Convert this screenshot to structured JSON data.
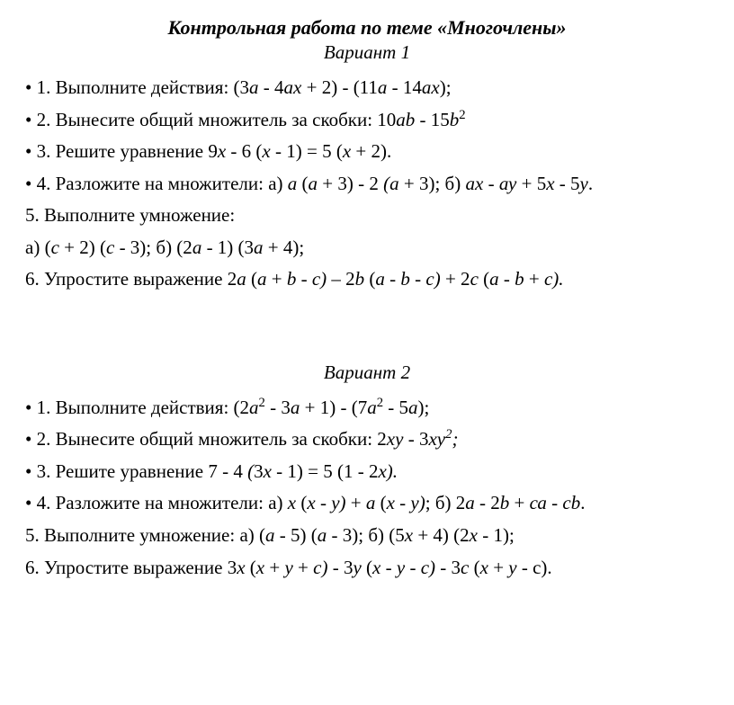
{
  "doc": {
    "title": "Контрольная работа по теме «Многочлены»",
    "variant1": {
      "heading": "Вариант 1",
      "lines": {
        "t1_pre": "1. Выполните действия: (",
        "t1_a": "3",
        "t1_b": "а",
        "t1_c": " - 4",
        "t1_d": "ах",
        "t1_e": " + 2) - (11",
        "t1_f": "а",
        "t1_g": " - 14",
        "t1_h": "ах",
        "t1_i": ");",
        "t2_a": "2. Вынесите общий множитель за скобки: 10",
        "t2_b": "аb",
        "t2_c": " - 15",
        "t2_d": "b",
        "t2_e": "2",
        "t3_a": "3. Решите уравнение 9",
        "t3_b": "х",
        "t3_c": " - 6 (",
        "t3_d": "х",
        "t3_e": " - 1) = 5 (",
        "t3_f": "х",
        "t3_g": " + 2).",
        "t4_a": "4. Разложите на множители: а) ",
        "t4_b": "а ",
        "t4_c": "(",
        "t4_d": "а",
        "t4_e": " + 3) - 2 ",
        "t4_f": "(а ",
        "t4_g": "+ 3); б) ",
        "t4_h": "ах",
        "t4_i": " - ",
        "t4_j": "ау",
        "t4_k": " + 5",
        "t4_l": "х",
        "t4_m": " - 5",
        "t4_n": "у",
        "t4_o": ".",
        "t5": "5. Выполните умножение:",
        "t5b_a": "а) (",
        "t5b_b": "с",
        "t5b_c": " + 2) (",
        "t5b_d": "с",
        "t5b_e": " - 3); б) (2",
        "t5b_f": "а",
        "t5b_g": " - 1) (",
        "t5b_h": "3",
        "t5b_i": "а",
        "t5b_j": " + 4);",
        "t6_a": "6. Упростите выражение 2",
        "t6_b": "а ",
        "t6_c": "(",
        "t6_d": "а ",
        "t6_e": "+",
        "t6_f": " b ",
        "t6_g": "- ",
        "t6_h": "с) ",
        "t6_i": "– 2",
        "t6_j": "b ",
        "t6_k": "(",
        "t6_l": "а ",
        "t6_m": "- ",
        "t6_n": "b ",
        "t6_o": "- ",
        "t6_p": "с) ",
        "t6_q": "+ 2",
        "t6_r": "с ",
        "t6_s": "(",
        "t6_t": "а ",
        "t6_u": "- ",
        "t6_v": "b ",
        "t6_w": "+ ",
        "t6_x": "с).",
        "t6_y": ""
      }
    },
    "variant2": {
      "heading": "Вариант 2",
      "lines": {
        "t1_a": "1. Выполните действия: (2",
        "t1_b": "а",
        "t1_c": "2",
        "t1_d": " - ",
        "t1_e": "3",
        "t1_f": "а",
        "t1_g": " + 1) - (7",
        "t1_h": "а",
        "t1_i": "2",
        "t1_j": " - 5",
        "t1_k": "а",
        "t1_l": ");",
        "t2_a": "2. Вынесите общий множитель за скобки: 2",
        "t2_b": "ху",
        "t2_c": " - 3",
        "t2_d": "ху",
        "t2_e": "2",
        "t2_f": ";",
        "t3_a": "3. Решите уравнение 7 - 4 ",
        "t3_b": "(",
        "t3_c": "3",
        "t3_d": "х",
        "t3_e": " - 1) = 5 (1 - 2",
        "t3_f": "х).",
        "t4_a": "4. Разложите на множители: а) ",
        "t4_b": "х ",
        "t4_c": "(",
        "t4_d": "х - у)",
        "t4_e": " + ",
        "t4_f": "а ",
        "t4_g": "(",
        "t4_h": "х - у)",
        "t4_i": "; б) 2",
        "t4_j": "а",
        "t4_k": " - 2",
        "t4_l": "b",
        "t4_m": " + ",
        "t4_n": "са",
        "t4_o": " - ",
        "t4_p": "сb",
        "t4_q": ".",
        "t5_a": "5. Выполните умножение:  а) (",
        "t5_b": "а",
        "t5_c": " - 5) (",
        "t5_d": "а",
        "t5_e": " - 3); б) (5",
        "t5_f": "х",
        "t5_g": " + 4) (2",
        "t5_h": "х",
        "t5_i": " - 1);",
        "t6_a": "6. Упростите выражение 3",
        "t6_b": "х ",
        "t6_c": "(",
        "t6_d": "х ",
        "t6_e": "+ ",
        "t6_f": "у ",
        "t6_g": "+ ",
        "t6_h": "с) ",
        "t6_i": "- 3",
        "t6_j": "у ",
        "t6_k": "(",
        "t6_l": "х ",
        "t6_m": "- ",
        "t6_n": "у ",
        "t6_o": "- ",
        "t6_p": "с) ",
        "t6_q": "- 3",
        "t6_r": "с ",
        "t6_s": "(",
        "t6_t": "х ",
        "t6_u": "+ ",
        "t6_v": "у ",
        "t6_w": "- с).",
        "t6_x": ""
      }
    }
  }
}
